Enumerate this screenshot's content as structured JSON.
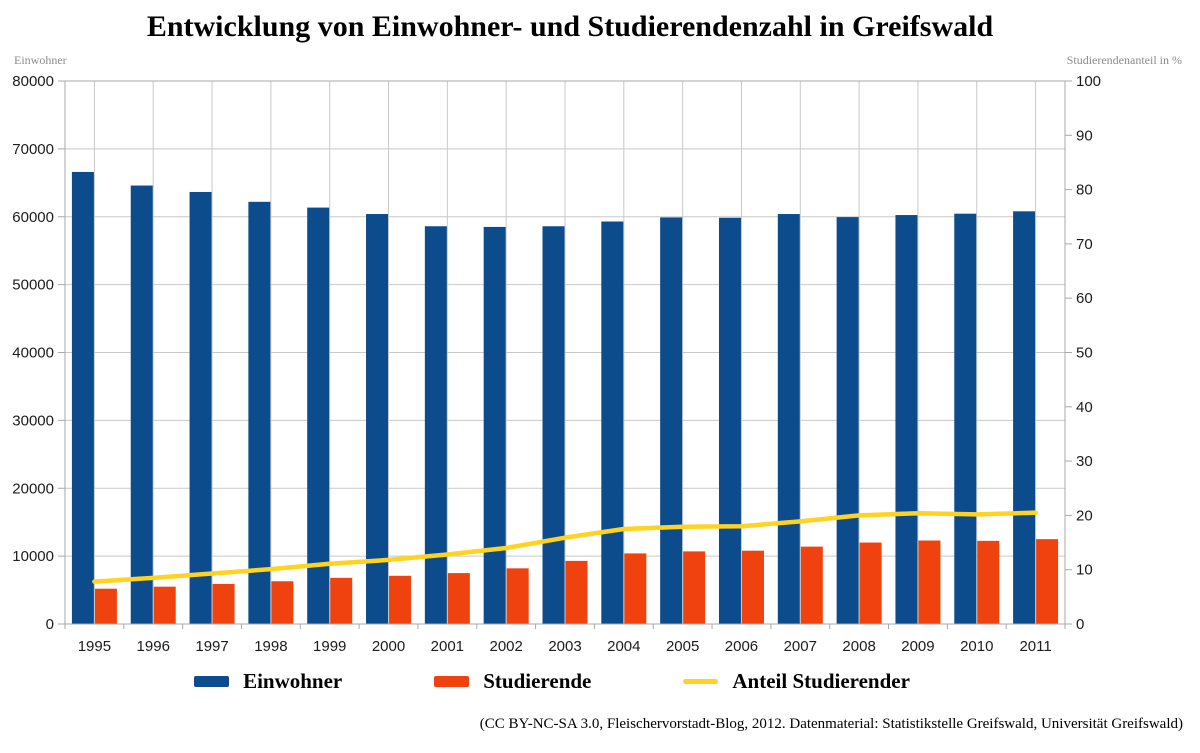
{
  "title": "Entwicklung von Einwohner- und Studierendenzahl in Greifswald",
  "attribution": "(CC BY-NC-SA 3.0, Fleischervorstadt-Blog, 2012. Datenmaterial: Statistikstelle Greifswald, Universität Greifswald)",
  "colors": {
    "einwohner": "#0d4c8c",
    "studierende": "#f0420e",
    "anteil": "#ffd320",
    "grid": "#c9c9c9",
    "axis": "#a9a9a9",
    "tick_text": "#1c1c1c"
  },
  "chart_data": {
    "type": "bar",
    "title": "Entwicklung von Einwohner- und Studierendenzahl in Greifswald",
    "categories": [
      "1995",
      "1996",
      "1997",
      "1998",
      "1999",
      "2000",
      "2001",
      "2002",
      "2003",
      "2004",
      "2005",
      "2006",
      "2007",
      "2008",
      "2009",
      "2010",
      "2011"
    ],
    "series": [
      {
        "name": "Einwohner",
        "type": "bar",
        "axis": "left",
        "color": "#0d4c8c",
        "values": [
          66600,
          64600,
          63650,
          62200,
          61350,
          60400,
          58600,
          58500,
          58600,
          59300,
          59900,
          59850,
          60400,
          59950,
          60250,
          60450,
          60800
        ]
      },
      {
        "name": "Studierende",
        "type": "bar",
        "axis": "left",
        "color": "#f0420e",
        "values": [
          5200,
          5500,
          5900,
          6300,
          6800,
          7100,
          7500,
          8200,
          9300,
          10400,
          10700,
          10800,
          11400,
          12000,
          12300,
          12250,
          12500
        ]
      },
      {
        "name": "Anteil Studierender",
        "type": "line",
        "axis": "right",
        "color": "#ffd320",
        "values": [
          7.8,
          8.5,
          9.3,
          10.1,
          11.1,
          11.8,
          12.8,
          14.0,
          15.9,
          17.5,
          17.9,
          18.0,
          18.9,
          20.0,
          20.4,
          20.2,
          20.5
        ]
      }
    ],
    "left_axis": {
      "title": "Einwohner",
      "min": 0,
      "max": 80000,
      "step": 10000
    },
    "right_axis": {
      "title": "Studierendenanteil in %",
      "min": 0,
      "max": 100,
      "step": 10
    },
    "legend_position": "bottom",
    "grid": true
  }
}
